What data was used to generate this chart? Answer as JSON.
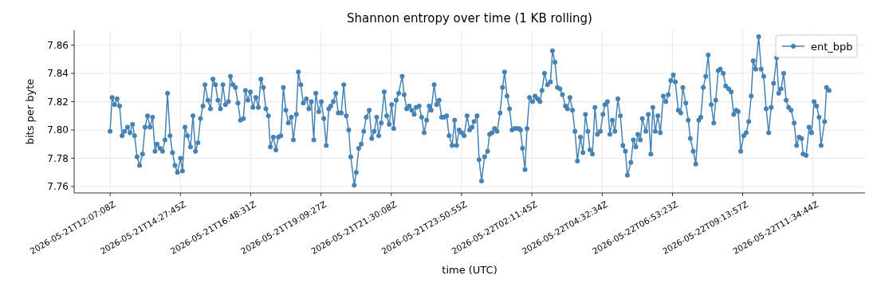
{
  "chart_data": {
    "type": "line",
    "title": "Shannon entropy over time (1 KB rolling)",
    "xlabel": "time (UTC)",
    "ylabel": "bits per byte",
    "xlim": [
      "2026-05-21T10:55",
      "2026-05-22T13:19"
    ],
    "ylim": [
      7.7555,
      7.8705
    ],
    "xticks": [
      {
        "value": "2026-05-21T12:07:08",
        "label": "2026-05-21T12:07:08Z"
      },
      {
        "value": "2026-05-21T14:27:45",
        "label": "2026-05-21T14:27:45Z"
      },
      {
        "value": "2026-05-21T16:48:31",
        "label": "2026-05-21T16:48:31Z"
      },
      {
        "value": "2026-05-21T19:09:27",
        "label": "2026-05-21T19:09:27Z"
      },
      {
        "value": "2026-05-21T21:30:08",
        "label": "2026-05-21T21:30:08Z"
      },
      {
        "value": "2026-05-21T23:50:55",
        "label": "2026-05-21T23:50:55Z"
      },
      {
        "value": "2026-05-22T02:11:45",
        "label": "2026-05-22T02:11:45Z"
      },
      {
        "value": "2026-05-22T04:32:34",
        "label": "2026-05-22T04:32:34Z"
      },
      {
        "value": "2026-05-22T06:53:23",
        "label": "2026-05-22T06:53:23Z"
      },
      {
        "value": "2026-05-22T09:13:57",
        "label": "2026-05-22T09:13:57Z"
      },
      {
        "value": "2026-05-22T11:34:44",
        "label": "2026-05-22T11:34:44Z"
      }
    ],
    "yticks": [
      7.76,
      7.78,
      {
        "value": 7.8,
        "label": "7.80"
      },
      7.82,
      7.84,
      7.86
    ],
    "grid": true,
    "legend": "top right",
    "marker": "circle",
    "line_style": "solid",
    "series": [
      {
        "name": "ent_bpb",
        "color": "#4682b4",
        "x": [
          "2026-05-21T12:07",
          "2026-05-21T12:11",
          "2026-05-21T12:16",
          "2026-05-21T12:21",
          "2026-05-21T12:26",
          "2026-05-21T12:31",
          "2026-05-21T12:36",
          "2026-05-21T12:42",
          "2026-05-21T12:47",
          "2026-05-21T12:52",
          "2026-05-21T12:56",
          "2026-05-21T13:01",
          "2026-05-21T13:06",
          "2026-05-21T13:12",
          "2026-05-21T13:17",
          "2026-05-21T13:22",
          "2026-05-21T13:27",
          "2026-05-21T13:32",
          "2026-05-21T13:37",
          "2026-05-21T13:41",
          "2026-05-21T13:47",
          "2026-05-21T13:52",
          "2026-05-21T13:57",
          "2026-05-21T14:02",
          "2026-05-21T14:07",
          "2026-05-21T14:12",
          "2026-05-21T14:17",
          "2026-05-21T14:22",
          "2026-05-21T14:28",
          "2026-05-21T14:32",
          "2026-05-21T14:37",
          "2026-05-21T14:42",
          "2026-05-21T14:48",
          "2026-05-21T14:53",
          "2026-05-21T14:58",
          "2026-05-21T15:03",
          "2026-05-21T15:08",
          "2026-05-21T15:13",
          "2026-05-21T15:17",
          "2026-05-21T15:23",
          "2026-05-21T15:28",
          "2026-05-21T15:33",
          "2026-05-21T15:38",
          "2026-05-21T15:43",
          "2026-05-21T15:48",
          "2026-05-21T15:53",
          "2026-05-21T15:58",
          "2026-05-21T16:04",
          "2026-05-21T16:08",
          "2026-05-21T16:13",
          "2026-05-21T16:18",
          "2026-05-21T16:23",
          "2026-05-21T16:28",
          "2026-05-21T16:34",
          "2026-05-21T16:38",
          "2026-05-21T16:43",
          "2026-05-21T16:48",
          "2026-05-21T16:53",
          "2026-05-21T16:59",
          "2026-05-21T17:04",
          "2026-05-21T17:09",
          "2026-05-21T17:14",
          "2026-05-21T17:19",
          "2026-05-21T17:24",
          "2026-05-21T17:28",
          "2026-05-21T17:34",
          "2026-05-21T17:39",
          "2026-05-21T17:44",
          "2026-05-21T17:49",
          "2026-05-21T17:54",
          "2026-05-21T17:59",
          "2026-05-21T18:04",
          "2026-05-21T18:10",
          "2026-05-21T18:14",
          "2026-05-21T18:20",
          "2026-05-21T18:24",
          "2026-05-21T18:29",
          "2026-05-21T18:34",
          "2026-05-21T18:40",
          "2026-05-21T18:45",
          "2026-05-21T18:50",
          "2026-05-21T18:55",
          "2026-05-21T18:59",
          "2026-05-21T19:05",
          "2026-05-21T19:10",
          "2026-05-21T19:15",
          "2026-05-21T19:20",
          "2026-05-21T19:25",
          "2026-05-21T19:29",
          "2026-05-21T19:34",
          "2026-05-21T19:39",
          "2026-05-21T19:44",
          "2026-05-21T19:50",
          "2026-05-21T19:55",
          "2026-05-21T20:00",
          "2026-05-21T20:05",
          "2026-05-21T20:09",
          "2026-05-21T20:16",
          "2026-05-21T20:20",
          "2026-05-21T20:25",
          "2026-05-21T20:30",
          "2026-05-21T20:35",
          "2026-05-21T20:40",
          "2026-05-21T20:46",
          "2026-05-21T20:51",
          "2026-05-21T20:56",
          "2026-05-21T21:01",
          "2026-05-21T21:05",
          "2026-05-21T21:10",
          "2026-05-21T21:16",
          "2026-05-21T21:21",
          "2026-05-21T21:26",
          "2026-05-21T21:31",
          "2026-05-21T21:35",
          "2026-05-21T21:40",
          "2026-05-21T21:45",
          "2026-05-21T21:52",
          "2026-05-21T21:56",
          "2026-05-21T22:01",
          "2026-05-21T22:06",
          "2026-05-21T22:11",
          "2026-05-21T22:16",
          "2026-05-21T22:20",
          "2026-05-21T22:26",
          "2026-05-21T22:31",
          "2026-05-21T22:36",
          "2026-05-21T22:41",
          "2026-05-21T22:46",
          "2026-05-21T22:50",
          "2026-05-21T22:56",
          "2026-05-21T23:01",
          "2026-05-21T23:06",
          "2026-05-21T23:11",
          "2026-05-21T23:16",
          "2026-05-21T23:21",
          "2026-05-21T23:26",
          "2026-05-21T23:32",
          "2026-05-21T23:37",
          "2026-05-21T23:41",
          "2026-05-21T23:46",
          "2026-05-21T23:51",
          "2026-05-21T23:56",
          "2026-05-22T00:02",
          "2026-05-22T00:07",
          "2026-05-22T00:12",
          "2026-05-22T00:16",
          "2026-05-22T00:22",
          "2026-05-22T00:26",
          "2026-05-22T00:31",
          "2026-05-22T00:37",
          "2026-05-22T00:43",
          "2026-05-22T00:47",
          "2026-05-22T00:52",
          "2026-05-22T00:57",
          "2026-05-22T01:02",
          "2026-05-22T01:08",
          "2026-05-22T01:13",
          "2026-05-22T01:17",
          "2026-05-22T01:22",
          "2026-05-22T01:27",
          "2026-05-22T01:32",
          "2026-05-22T01:37",
          "2026-05-22T01:41",
          "2026-05-22T01:46",
          "2026-05-22T01:49",
          "2026-05-22T01:53",
          "2026-05-22T01:58",
          "2026-05-22T02:02",
          "2026-05-22T02:07",
          "2026-05-22T02:13",
          "2026-05-22T02:18",
          "2026-05-22T02:23",
          "2026-05-22T02:28",
          "2026-05-22T02:32",
          "2026-05-22T02:37",
          "2026-05-22T02:43",
          "2026-05-22T02:49",
          "2026-05-22T02:53",
          "2026-05-22T02:58",
          "2026-05-22T03:03",
          "2026-05-22T03:08",
          "2026-05-22T03:13",
          "2026-05-22T03:19",
          "2026-05-22T03:23",
          "2026-05-22T03:28",
          "2026-05-22T03:33",
          "2026-05-22T03:38",
          "2026-05-22T03:43",
          "2026-05-22T03:49",
          "2026-05-22T03:54",
          "2026-05-22T03:59",
          "2026-05-22T04:04",
          "2026-05-22T04:08",
          "2026-05-22T04:13",
          "2026-05-22T04:18",
          "2026-05-22T04:23",
          "2026-05-22T04:29",
          "2026-05-22T04:34",
          "2026-05-22T04:38",
          "2026-05-22T04:43",
          "2026-05-22T04:48",
          "2026-05-22T04:53",
          "2026-05-22T04:58",
          "2026-05-22T05:04",
          "2026-05-22T05:09",
          "2026-05-22T05:14",
          "2026-05-22T05:19",
          "2026-05-22T05:23",
          "2026-05-22T05:30",
          "2026-05-22T05:35",
          "2026-05-22T05:40",
          "2026-05-22T05:44",
          "2026-05-22T05:49",
          "2026-05-22T05:53",
          "2026-05-22T06:00",
          "2026-05-22T06:05",
          "2026-05-22T06:10",
          "2026-05-22T06:14",
          "2026-05-22T06:19",
          "2026-05-22T06:24",
          "2026-05-22T06:29",
          "2026-05-22T06:35",
          "2026-05-22T06:40",
          "2026-05-22T06:45",
          "2026-05-22T06:50",
          "2026-05-22T06:55",
          "2026-05-22T06:59",
          "2026-05-22T07:05",
          "2026-05-22T07:10",
          "2026-05-22T07:14",
          "2026-05-22T07:20",
          "2026-05-22T07:25",
          "2026-05-22T07:29",
          "2026-05-22T07:35",
          "2026-05-22T07:40",
          "2026-05-22T07:46",
          "2026-05-22T07:50",
          "2026-05-22T07:55",
          "2026-05-22T08:00",
          "2026-05-22T08:05",
          "2026-05-22T08:11",
          "2026-05-22T08:16",
          "2026-05-22T08:20",
          "2026-05-22T08:25",
          "2026-05-22T08:29",
          "2026-05-22T08:35",
          "2026-05-22T08:40",
          "2026-05-22T08:46",
          "2026-05-22T08:51",
          "2026-05-22T08:56",
          "2026-05-22T09:01",
          "2026-05-22T09:05",
          "2026-05-22T09:10",
          "2026-05-22T09:16",
          "2026-05-22T09:21",
          "2026-05-22T09:26",
          "2026-05-22T09:31",
          "2026-05-22T09:35",
          "2026-05-22T09:40",
          "2026-05-22T09:46",
          "2026-05-22T09:51",
          "2026-05-22T09:56",
          "2026-05-22T10:01",
          "2026-05-22T10:06",
          "2026-05-22T10:11",
          "2026-05-22T10:16",
          "2026-05-22T10:22",
          "2026-05-22T10:26",
          "2026-05-22T10:31",
          "2026-05-22T10:36",
          "2026-05-22T10:41",
          "2026-05-22T10:46",
          "2026-05-22T10:51",
          "2026-05-22T10:57",
          "2026-05-22T11:02",
          "2026-05-22T11:07",
          "2026-05-22T11:12",
          "2026-05-22T11:15",
          "2026-05-22T11:21",
          "2026-05-22T11:27",
          "2026-05-22T11:32",
          "2026-05-22T11:37",
          "2026-05-22T11:42",
          "2026-05-22T11:47",
          "2026-05-22T11:51",
          "2026-05-22T11:58",
          "2026-05-22T12:02",
          "2026-05-22T12:07"
        ],
        "values": [
          7.799,
          7.823,
          7.818,
          7.822,
          7.817,
          7.796,
          7.799,
          7.802,
          7.798,
          7.804,
          7.796,
          7.781,
          7.775,
          7.783,
          7.802,
          7.81,
          7.802,
          7.809,
          7.785,
          7.79,
          7.787,
          7.785,
          7.793,
          7.826,
          7.796,
          7.784,
          7.775,
          7.77,
          7.78,
          7.771,
          7.802,
          7.796,
          7.788,
          7.81,
          7.785,
          7.791,
          7.808,
          7.817,
          7.832,
          7.821,
          7.815,
          7.836,
          7.832,
          7.821,
          7.815,
          7.832,
          7.818,
          7.82,
          7.838,
          7.832,
          7.83,
          7.819,
          7.807,
          7.808,
          7.828,
          7.821,
          7.827,
          7.816,
          7.823,
          7.816,
          7.836,
          7.83,
          7.815,
          7.81,
          7.788,
          7.795,
          7.786,
          7.795,
          7.796,
          7.83,
          7.814,
          7.805,
          7.809,
          7.793,
          7.811,
          7.841,
          7.832,
          7.819,
          7.822,
          7.815,
          7.82,
          7.793,
          7.826,
          7.813,
          7.82,
          7.808,
          7.789,
          7.815,
          7.817,
          7.82,
          7.826,
          7.812,
          7.812,
          7.832,
          7.81,
          7.8,
          7.781,
          7.761,
          7.77,
          7.787,
          7.79,
          7.799,
          7.809,
          7.814,
          7.794,
          7.799,
          7.809,
          7.796,
          7.805,
          7.827,
          7.81,
          7.804,
          7.818,
          7.801,
          7.821,
          7.826,
          7.838,
          7.825,
          7.815,
          7.817,
          7.814,
          7.811,
          7.816,
          7.817,
          7.809,
          7.798,
          7.807,
          7.817,
          7.814,
          7.832,
          7.818,
          7.821,
          7.809,
          7.809,
          7.81,
          7.796,
          7.789,
          7.807,
          7.789,
          7.8,
          7.798,
          7.796,
          7.81,
          7.8,
          7.802,
          7.806,
          7.81,
          7.779,
          7.764,
          7.781,
          7.785,
          7.797,
          7.798,
          7.801,
          7.799,
          7.812,
          7.83,
          7.841,
          7.824,
          7.815,
          7.8,
          7.801,
          7.801,
          7.801,
          7.8,
          7.787,
          7.772,
          7.801,
          7.823,
          7.82,
          7.824,
          7.822,
          7.82,
          7.828,
          7.84,
          7.832,
          7.834,
          7.856,
          7.848,
          7.83,
          7.829,
          7.825,
          7.817,
          7.815,
          7.823,
          7.814,
          7.799,
          7.778,
          7.795,
          7.784,
          7.811,
          7.799,
          7.786,
          7.783,
          7.816,
          7.797,
          7.799,
          7.811,
          7.818,
          7.82,
          7.797,
          7.807,
          7.799,
          7.822,
          7.81,
          7.789,
          7.785,
          7.768,
          7.777,
          7.793,
          7.788,
          7.797,
          7.793,
          7.808,
          7.799,
          7.811,
          7.783,
          7.816,
          7.799,
          7.81,
          7.798,
          7.824,
          7.82,
          7.825,
          7.835,
          7.839,
          7.834,
          7.814,
          7.812,
          7.83,
          7.819,
          7.807,
          7.794,
          7.785,
          7.776,
          7.807,
          7.809,
          7.83,
          7.838,
          7.853,
          7.818,
          7.805,
          7.821,
          7.842,
          7.843,
          7.84,
          7.831,
          7.829,
          7.827,
          7.811,
          7.814,
          7.813,
          7.785,
          7.796,
          7.798,
          7.806,
          7.824,
          7.849,
          7.843,
          7.866,
          7.843,
          7.838,
          7.815,
          7.798,
          7.816,
          7.833,
          7.851,
          7.826,
          7.829,
          7.84,
          7.821,
          7.816,
          7.814,
          7.805,
          7.789,
          7.795,
          7.794,
          7.783,
          7.782,
          7.802,
          7.798,
          7.82,
          7.817,
          7.809,
          7.789,
          7.806,
          7.83,
          7.828
        ]
      }
    ]
  }
}
